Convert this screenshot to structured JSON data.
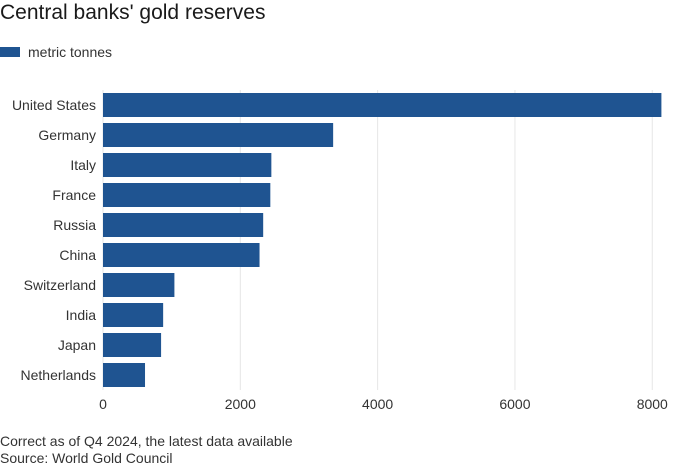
{
  "chart_data": {
    "type": "bar",
    "orientation": "horizontal",
    "title": "Central banks' gold reserves",
    "categories": [
      "United States",
      "Germany",
      "Italy",
      "France",
      "Russia",
      "China",
      "Switzerland",
      "India",
      "Japan",
      "Netherlands"
    ],
    "series": [
      {
        "name": "metric tonnes",
        "values": [
          8133,
          3352,
          2452,
          2437,
          2333,
          2280,
          1040,
          876,
          846,
          612
        ]
      }
    ],
    "x_ticks": [
      0,
      2000,
      4000,
      6000,
      8000
    ],
    "xlim": [
      0,
      8200
    ],
    "grid": "vertical",
    "legend_position": "top-left",
    "bar_color": "#1f5491",
    "grid_color": "#e6e6e6"
  },
  "footer": {
    "note": "Correct as of Q4 2024, the latest data available",
    "source": "Source: World Gold Council"
  }
}
